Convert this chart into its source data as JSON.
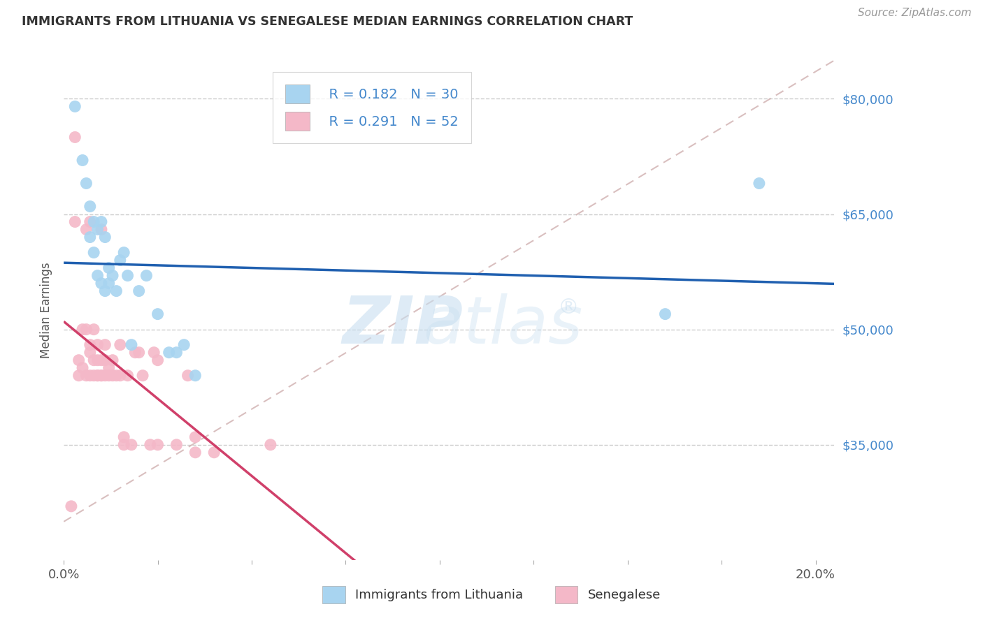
{
  "title": "IMMIGRANTS FROM LITHUANIA VS SENEGALESE MEDIAN EARNINGS CORRELATION CHART",
  "source": "Source: ZipAtlas.com",
  "ylabel": "Median Earnings",
  "ytick_labels": [
    "$35,000",
    "$50,000",
    "$65,000",
    "$80,000"
  ],
  "ytick_values": [
    35000,
    50000,
    65000,
    80000
  ],
  "ylim": [
    20000,
    85000
  ],
  "xlim": [
    0.0,
    0.205
  ],
  "blue_label": "Immigrants from Lithuania",
  "pink_label": "Senegalese",
  "blue_R": 0.182,
  "blue_N": 30,
  "pink_R": 0.291,
  "pink_N": 52,
  "blue_color": "#a8d4f0",
  "pink_color": "#f4b8c8",
  "blue_line_color": "#2060b0",
  "pink_line_color": "#d0406a",
  "diag_line_color": "#d0b0b0",
  "axis_label_color": "#4488cc",
  "blue_scatter_x": [
    0.003,
    0.005,
    0.006,
    0.007,
    0.007,
    0.008,
    0.008,
    0.009,
    0.009,
    0.01,
    0.01,
    0.011,
    0.011,
    0.012,
    0.012,
    0.013,
    0.014,
    0.015,
    0.016,
    0.017,
    0.018,
    0.02,
    0.022,
    0.025,
    0.028,
    0.03,
    0.032,
    0.035,
    0.16,
    0.185
  ],
  "blue_scatter_y": [
    79000,
    72000,
    69000,
    62000,
    66000,
    64000,
    60000,
    63000,
    57000,
    56000,
    64000,
    55000,
    62000,
    56000,
    58000,
    57000,
    55000,
    59000,
    60000,
    57000,
    48000,
    55000,
    57000,
    52000,
    47000,
    47000,
    48000,
    44000,
    52000,
    69000
  ],
  "pink_scatter_x": [
    0.002,
    0.003,
    0.003,
    0.004,
    0.004,
    0.005,
    0.005,
    0.006,
    0.006,
    0.006,
    0.007,
    0.007,
    0.007,
    0.007,
    0.008,
    0.008,
    0.008,
    0.009,
    0.009,
    0.009,
    0.009,
    0.01,
    0.01,
    0.01,
    0.01,
    0.011,
    0.011,
    0.011,
    0.012,
    0.012,
    0.013,
    0.013,
    0.014,
    0.015,
    0.015,
    0.016,
    0.016,
    0.017,
    0.018,
    0.019,
    0.02,
    0.021,
    0.023,
    0.025,
    0.025,
    0.03,
    0.033,
    0.035,
    0.035,
    0.04,
    0.055,
    0.024
  ],
  "pink_scatter_y": [
    27000,
    75000,
    64000,
    44000,
    46000,
    45000,
    50000,
    44000,
    50000,
    63000,
    44000,
    47000,
    48000,
    64000,
    44000,
    46000,
    50000,
    44000,
    44000,
    46000,
    48000,
    44000,
    44000,
    46000,
    63000,
    44000,
    46000,
    48000,
    44000,
    45000,
    44000,
    46000,
    44000,
    44000,
    48000,
    35000,
    36000,
    44000,
    35000,
    47000,
    47000,
    44000,
    35000,
    35000,
    46000,
    35000,
    44000,
    34000,
    36000,
    34000,
    35000,
    47000
  ]
}
